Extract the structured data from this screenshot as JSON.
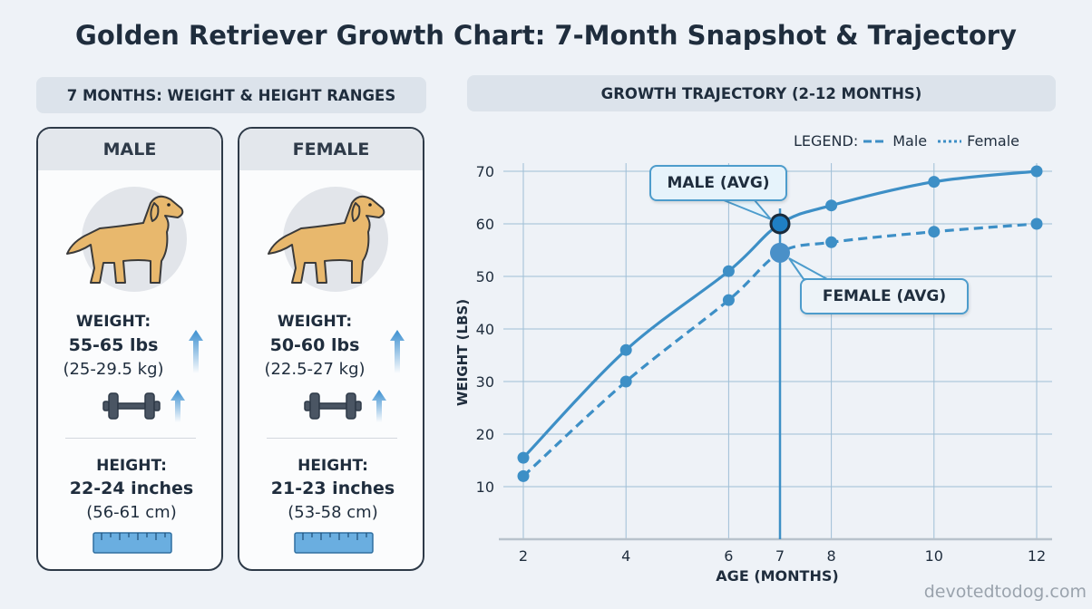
{
  "title": "Golden Retriever Growth Chart: 7-Month Snapshot & Trajectory",
  "left_header": "7 MONTHS: WEIGHT & HEIGHT RANGES",
  "right_header": "GROWTH TRAJECTORY (2-12 MONTHS)",
  "cards": [
    {
      "label": "MALE",
      "weight_label": "WEIGHT:",
      "weight": "55-65 lbs",
      "weight_metric": "(25-29.5 kg)",
      "height_label": "HEIGHT:",
      "height": "22-24 inches",
      "height_metric": "(56-61 cm)"
    },
    {
      "label": "FEMALE",
      "weight_label": "WEIGHT:",
      "weight": "50-60 lbs",
      "weight_metric": "(22.5-27 kg)",
      "height_label": "HEIGHT:",
      "height": "21-23 inches",
      "height_metric": "(53-58 cm)"
    }
  ],
  "icons": [
    "dog-icon",
    "dumbbell-icon",
    "arrow-up-icon",
    "ruler-icon"
  ],
  "colors": {
    "line": "#3d8fc6",
    "accent": "#1f7fc4",
    "dog": "#e8b86d",
    "background": "#eef2f7"
  },
  "chart_data": {
    "type": "line",
    "title": "GROWTH TRAJECTORY (2-12 MONTHS)",
    "xlabel": "AGE (MONTHS)",
    "ylabel": "WEIGHT (LBS)",
    "x": [
      2,
      4,
      6,
      7,
      8,
      10,
      12
    ],
    "x_ticks": [
      "2",
      "4",
      "6",
      "7",
      "8",
      "10",
      "12"
    ],
    "y_ticks": [
      "10",
      "20",
      "30",
      "40",
      "50",
      "60",
      "70"
    ],
    "ylim": [
      0,
      70
    ],
    "xlim": [
      2,
      12
    ],
    "grid": true,
    "legend_title": "LEGEND:",
    "legend_placement": "top-right",
    "highlight_x": 7,
    "series": [
      {
        "name": "Male",
        "values": [
          15.5,
          36,
          51,
          60,
          63.5,
          68,
          70
        ],
        "style": "solid"
      },
      {
        "name": "Female",
        "values": [
          12,
          30,
          45.5,
          54.5,
          56.5,
          58.5,
          60
        ],
        "style": "dashed"
      }
    ],
    "annotations": [
      "MALE (AVG)",
      "FEMALE (AVG)"
    ]
  },
  "watermark": "devotedtodog.com"
}
